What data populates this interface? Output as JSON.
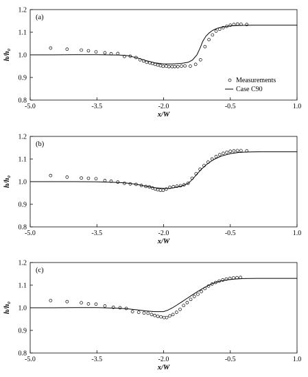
{
  "chart_data": [
    {
      "type": "scatter",
      "panel_label": "(a)",
      "xlabel": "x/W",
      "ylabel": "h/h₀",
      "xlim": [
        -5.0,
        1.0
      ],
      "ylim": [
        0.8,
        1.2
      ],
      "xticks": [
        -5.0,
        -3.5,
        -2.0,
        -0.5,
        1.0
      ],
      "xtick_labels": [
        "-5.0",
        "-3.5",
        "-2.0",
        "-0.5",
        "1.0"
      ],
      "yticks": [
        0.8,
        0.9,
        1.0,
        1.1,
        1.2
      ],
      "ytick_labels": [
        "0.8",
        "0.9",
        "1.0",
        "1.1",
        "1.2"
      ],
      "legend": {
        "placement": "bottom-right",
        "entries": [
          "Measurements",
          "Case C90"
        ]
      },
      "series": [
        {
          "name": "Measurements",
          "style": "open-circle",
          "x": [
            -4.54,
            -4.17,
            -3.85,
            -3.69,
            -3.52,
            -3.32,
            -3.18,
            -3.03,
            -2.88,
            -2.75,
            -2.62,
            -2.53,
            -2.45,
            -2.38,
            -2.31,
            -2.25,
            -2.19,
            -2.13,
            -2.07,
            -2.01,
            -1.94,
            -1.88,
            -1.81,
            -1.75,
            -1.68,
            -1.6,
            -1.52,
            -1.4,
            -1.28,
            -1.17,
            -1.07,
            -0.98,
            -0.9,
            -0.82,
            -0.74,
            -0.66,
            -0.58,
            -0.5,
            -0.42,
            -0.34,
            -0.26,
            -0.13
          ],
          "y": [
            1.03,
            1.025,
            1.021,
            1.018,
            1.013,
            1.009,
            1.005,
            1.006,
            0.993,
            0.994,
            0.988,
            0.978,
            0.973,
            0.967,
            0.965,
            0.962,
            0.958,
            0.955,
            0.952,
            0.949,
            0.95,
            0.948,
            0.948,
            0.948,
            0.948,
            0.95,
            0.951,
            0.95,
            0.958,
            0.978,
            1.036,
            1.067,
            1.088,
            1.105,
            1.113,
            1.12,
            1.126,
            1.131,
            1.134,
            1.136,
            1.135,
            1.134
          ]
        },
        {
          "name": "Case C90",
          "style": "line",
          "x": [
            -5.0,
            -4.5,
            -4.0,
            -3.5,
            -3.0,
            -2.8,
            -2.6,
            -2.4,
            -2.2,
            -2.0,
            -1.8,
            -1.6,
            -1.45,
            -1.35,
            -1.25,
            -1.18,
            -1.12,
            -1.05,
            -0.98,
            -0.9,
            -0.8,
            -0.7,
            -0.6,
            -0.5,
            -0.3,
            0.0,
            1.0
          ],
          "y": [
            1.0,
            1.0,
            1.001,
            1.001,
            0.999,
            0.996,
            0.987,
            0.975,
            0.965,
            0.96,
            0.96,
            0.962,
            0.967,
            0.977,
            1.0,
            1.03,
            1.06,
            1.082,
            1.096,
            1.108,
            1.117,
            1.122,
            1.125,
            1.128,
            1.13,
            1.131,
            1.131
          ]
        }
      ]
    },
    {
      "type": "scatter",
      "panel_label": "(b)",
      "xlabel": "x/W",
      "ylabel": "h/h₀",
      "xlim": [
        -5.0,
        1.0
      ],
      "ylim": [
        0.8,
        1.2
      ],
      "xticks": [
        -5.0,
        -3.5,
        -2.0,
        -0.5,
        1.0
      ],
      "xtick_labels": [
        "-5.0",
        "-3.5",
        "-2.0",
        "-0.5",
        "1.0"
      ],
      "yticks": [
        0.8,
        0.9,
        1.0,
        1.1,
        1.2
      ],
      "ytick_labels": [
        "0.8",
        "0.9",
        "1.0",
        "1.1",
        "1.2"
      ],
      "series": [
        {
          "name": "Measurements",
          "style": "open-circle",
          "x": [
            -4.54,
            -4.17,
            -3.85,
            -3.69,
            -3.52,
            -3.32,
            -3.18,
            -3.03,
            -2.88,
            -2.75,
            -2.62,
            -2.5,
            -2.4,
            -2.32,
            -2.25,
            -2.19,
            -2.13,
            -2.07,
            -2.01,
            -1.94,
            -1.86,
            -1.78,
            -1.7,
            -1.62,
            -1.54,
            -1.45,
            -1.36,
            -1.27,
            -1.18,
            -1.09,
            -1.0,
            -0.91,
            -0.82,
            -0.74,
            -0.66,
            -0.58,
            -0.5,
            -0.42,
            -0.34,
            -0.26,
            -0.13
          ],
          "y": [
            1.027,
            1.02,
            1.016,
            1.015,
            1.013,
            1.005,
            1.002,
            0.998,
            0.993,
            0.99,
            0.988,
            0.983,
            0.979,
            0.977,
            0.972,
            0.968,
            0.964,
            0.962,
            0.962,
            0.967,
            0.975,
            0.978,
            0.98,
            0.982,
            0.986,
            0.993,
            1.015,
            1.035,
            1.055,
            1.071,
            1.086,
            1.1,
            1.111,
            1.119,
            1.125,
            1.13,
            1.134,
            1.136,
            1.137,
            1.137,
            1.136
          ]
        },
        {
          "name": "Case C90",
          "style": "line",
          "x": [
            -5.0,
            -4.5,
            -4.0,
            -3.5,
            -3.0,
            -2.8,
            -2.6,
            -2.4,
            -2.2,
            -2.0,
            -1.9,
            -1.8,
            -1.6,
            -1.45,
            -1.35,
            -1.25,
            -1.15,
            -1.05,
            -0.95,
            -0.85,
            -0.7,
            -0.5,
            -0.3,
            -0.1,
            0.2,
            1.0
          ],
          "y": [
            1.0,
            1.0,
            1.0,
            0.999,
            0.996,
            0.993,
            0.988,
            0.98,
            0.973,
            0.97,
            0.97,
            0.972,
            0.98,
            0.992,
            1.01,
            1.033,
            1.055,
            1.073,
            1.088,
            1.1,
            1.113,
            1.124,
            1.129,
            1.131,
            1.132,
            1.132
          ]
        }
      ]
    },
    {
      "type": "scatter",
      "panel_label": "(c)",
      "xlabel": "x/W",
      "ylabel": "h/h₀",
      "xlim": [
        -5.0,
        1.0
      ],
      "ylim": [
        0.8,
        1.2
      ],
      "xticks": [
        -5.0,
        -3.5,
        -2.0,
        -0.5,
        1.0
      ],
      "xtick_labels": [
        "-5.0",
        "-3.5",
        "-2.0",
        "-0.5",
        "1.0"
      ],
      "yticks": [
        0.8,
        0.9,
        1.0,
        1.1,
        1.2
      ],
      "ytick_labels": [
        "0.8",
        "0.9",
        "1.0",
        "1.1",
        "1.2"
      ],
      "series": [
        {
          "name": "Measurements",
          "style": "open-circle",
          "x": [
            -4.54,
            -4.17,
            -3.85,
            -3.69,
            -3.52,
            -3.32,
            -3.13,
            -2.98,
            -2.84,
            -2.7,
            -2.56,
            -2.44,
            -2.35,
            -2.27,
            -2.2,
            -2.13,
            -2.06,
            -1.99,
            -1.93,
            -1.86,
            -1.79,
            -1.71,
            -1.63,
            -1.55,
            -1.47,
            -1.39,
            -1.31,
            -1.23,
            -1.15,
            -1.07,
            -0.99,
            -0.91,
            -0.83,
            -0.75,
            -0.67,
            -0.59,
            -0.51,
            -0.43,
            -0.35,
            -0.27
          ],
          "y": [
            1.032,
            1.027,
            1.022,
            1.017,
            1.016,
            1.008,
            1.002,
            1.0,
            0.997,
            0.983,
            0.98,
            0.977,
            0.976,
            0.97,
            0.966,
            0.962,
            0.96,
            0.957,
            0.957,
            0.964,
            0.97,
            0.98,
            0.993,
            1.01,
            1.023,
            1.037,
            1.05,
            1.06,
            1.072,
            1.085,
            1.096,
            1.105,
            1.112,
            1.118,
            1.123,
            1.127,
            1.13,
            1.132,
            1.133,
            1.134
          ]
        },
        {
          "name": "Case C90",
          "style": "line",
          "x": [
            -5.0,
            -4.5,
            -4.0,
            -3.5,
            -3.0,
            -2.8,
            -2.6,
            -2.4,
            -2.2,
            -2.0,
            -1.9,
            -1.8,
            -1.7,
            -1.6,
            -1.5,
            -1.4,
            -1.3,
            -1.2,
            -1.1,
            -1.0,
            -0.9,
            -0.8,
            -0.7,
            -0.55,
            -0.4,
            -0.2,
            0.1,
            1.0
          ],
          "y": [
            1.0,
            1.0,
            1.001,
            1.001,
            0.998,
            0.995,
            0.991,
            0.986,
            0.983,
            0.983,
            0.99,
            1.0,
            1.012,
            1.025,
            1.038,
            1.051,
            1.064,
            1.076,
            1.088,
            1.098,
            1.107,
            1.114,
            1.119,
            1.124,
            1.127,
            1.129,
            1.13,
            1.13
          ]
        }
      ]
    }
  ]
}
